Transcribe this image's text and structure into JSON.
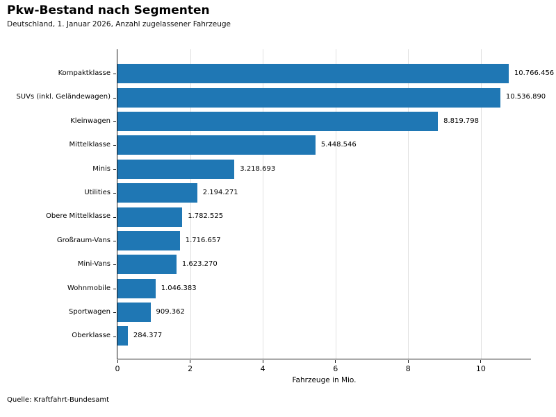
{
  "chart_data": {
    "type": "bar",
    "orientation": "horizontal",
    "title": "Pkw-Bestand nach Segmenten",
    "subtitle": "Deutschland, 1. Januar 2026, Anzahl zugelassener Fahrzeuge",
    "source": "Quelle: Kraftfahrt-Bundesamt",
    "xlabel": "Fahrzeuge in Mio.",
    "categories": [
      "Kompaktklasse",
      "SUVs (inkl. Geländewagen)",
      "Kleinwagen",
      "Mittelklasse",
      "Minis",
      "Utilities",
      "Obere Mittelklasse",
      "Großraum-Vans",
      "Mini-Vans",
      "Wohnmobile",
      "Sportwagen",
      "Oberklasse"
    ],
    "values": [
      10766456,
      10536890,
      8819798,
      5448546,
      3218693,
      2194271,
      1782525,
      1716657,
      1623270,
      1046383,
      909362,
      284377
    ],
    "value_labels": [
      "10.766.456",
      "10.536.890",
      "8.819.798",
      "5.448.546",
      "3.218.693",
      "2.194.271",
      "1.782.525",
      "1.716.657",
      "1.623.270",
      "1.046.383",
      "909.362",
      "284.377"
    ],
    "x_ticks": [
      0,
      2,
      4,
      6,
      8,
      10
    ],
    "x_tick_labels": [
      "0",
      "2",
      "4",
      "6",
      "8",
      "10"
    ],
    "xlim": [
      0,
      11.38
    ],
    "unit_divisor": 1000000,
    "bar_color": "#1f77b4",
    "grid": "vertical-only",
    "legend": "none"
  }
}
